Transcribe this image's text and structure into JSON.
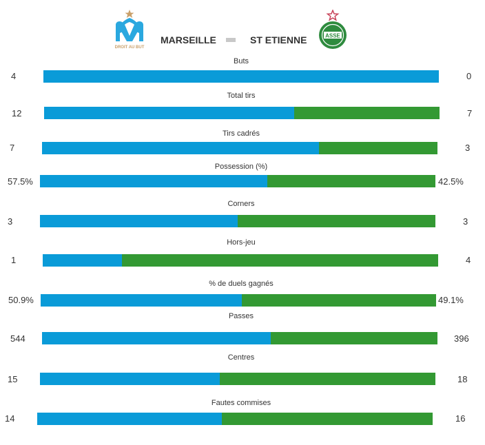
{
  "header": {
    "home_team": "MARSEILLE",
    "away_team": "ST ETIENNE",
    "home_logo_icon": "olympique-marseille-crest-icon",
    "home_logo_text": "DROIT AU BUT",
    "away_logo_icon": "as-saint-etienne-crest-icon",
    "away_logo_text": "ASSE"
  },
  "colors": {
    "home": "#0a9bd8",
    "away": "#339933",
    "separator": "#c8c8c8"
  },
  "stats": [
    {
      "label": "Buts",
      "home": "4",
      "away": "0",
      "home_share": 1.0
    },
    {
      "label": "Total tirs",
      "home": "12",
      "away": "7",
      "home_share": 0.632
    },
    {
      "label": "Tirs cadrés",
      "home": "7",
      "away": "3",
      "home_share": 0.7
    },
    {
      "label": "Possession (%)",
      "home": "57.5%",
      "away": "42.5%",
      "home_share": 0.575
    },
    {
      "label": "Corners",
      "home": "3",
      "away": "3",
      "home_share": 0.5
    },
    {
      "label": "Hors-jeu",
      "home": "1",
      "away": "4",
      "home_share": 0.2
    },
    {
      "label": "% de duels gagnés",
      "home": "50.9%",
      "away": "49.1%",
      "home_share": 0.509
    },
    {
      "label": "Passes",
      "home": "544",
      "away": "396",
      "home_share": 0.579
    },
    {
      "label": "Centres",
      "home": "15",
      "away": "18",
      "home_share": 0.455
    },
    {
      "label": "Fautes commises",
      "home": "14",
      "away": "16",
      "home_share": 0.467
    }
  ]
}
